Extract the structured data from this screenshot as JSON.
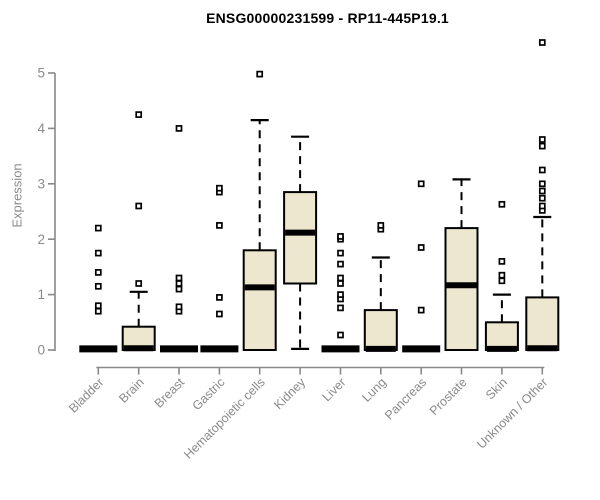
{
  "chart_data": {
    "type": "boxplot",
    "title": "ENSG00000231599 - RP11-445P19.1",
    "ylabel": "Expression",
    "xlabel": "",
    "ylim": [
      0,
      5
    ],
    "yticks": [
      0,
      1,
      2,
      3,
      4,
      5
    ],
    "grid": "off",
    "legend": "none",
    "categories": [
      "Bladder",
      "Brain",
      "Breast",
      "Gastric",
      "Hematopoietic cells",
      "Kidney",
      "Liver",
      "Lung",
      "Pancreas",
      "Prostate",
      "Skin",
      "Unknown / Other"
    ],
    "series": [
      {
        "name": "Bladder",
        "q1": 0,
        "median": 0.02,
        "q3": 0.02,
        "whisker_low": 0,
        "whisker_high": 0.02,
        "outliers": [
          0.7,
          0.8,
          1.15,
          1.4,
          1.75,
          2.2
        ]
      },
      {
        "name": "Brain",
        "q1": 0,
        "median": 0.03,
        "q3": 0.42,
        "whisker_low": 0,
        "whisker_high": 1.05,
        "outliers": [
          1.2,
          2.6,
          4.25
        ]
      },
      {
        "name": "Breast",
        "q1": 0,
        "median": 0.02,
        "q3": 0.02,
        "whisker_low": 0,
        "whisker_high": 0.02,
        "outliers": [
          0.7,
          0.78,
          1.1,
          1.2,
          1.3,
          4.0
        ]
      },
      {
        "name": "Gastric",
        "q1": 0,
        "median": 0.02,
        "q3": 0.02,
        "whisker_low": 0,
        "whisker_high": 0.02,
        "outliers": [
          0.65,
          0.95,
          2.25,
          2.85,
          2.92
        ]
      },
      {
        "name": "Hematopoietic cells",
        "q1": 0,
        "median": 1.13,
        "q3": 1.8,
        "whisker_low": 0,
        "whisker_high": 4.15,
        "outliers": [
          4.98
        ]
      },
      {
        "name": "Kidney",
        "q1": 1.2,
        "median": 2.12,
        "q3": 2.85,
        "whisker_low": 0.02,
        "whisker_high": 3.85,
        "outliers": []
      },
      {
        "name": "Liver",
        "q1": 0,
        "median": 0.02,
        "q3": 0.02,
        "whisker_low": 0,
        "whisker_high": 0.02,
        "outliers": [
          0.27,
          0.76,
          0.92,
          1.0,
          1.2,
          1.3,
          1.55,
          1.75,
          2.0,
          2.05
        ]
      },
      {
        "name": "Lung",
        "q1": 0,
        "median": 0.02,
        "q3": 0.72,
        "whisker_low": 0,
        "whisker_high": 1.67,
        "outliers": [
          2.18,
          2.25
        ]
      },
      {
        "name": "Pancreas",
        "q1": 0,
        "median": 0.02,
        "q3": 0.02,
        "whisker_low": 0,
        "whisker_high": 0.02,
        "outliers": [
          0.72,
          1.85,
          3.0
        ]
      },
      {
        "name": "Prostate",
        "q1": 0,
        "median": 1.17,
        "q3": 2.2,
        "whisker_low": 0,
        "whisker_high": 3.08,
        "outliers": []
      },
      {
        "name": "Skin",
        "q1": 0,
        "median": 0.02,
        "q3": 0.5,
        "whisker_low": 0,
        "whisker_high": 1.0,
        "outliers": [
          1.25,
          1.35,
          1.6,
          2.63
        ]
      },
      {
        "name": "Unknown / Other",
        "q1": 0,
        "median": 0.03,
        "q3": 0.95,
        "whisker_low": 0,
        "whisker_high": 2.4,
        "outliers": [
          2.52,
          2.6,
          2.74,
          2.87,
          3.0,
          3.25,
          3.68,
          3.8,
          5.55
        ]
      }
    ],
    "colors": {
      "box_fill": "#EDE7D0",
      "box_stroke": "#000000",
      "median": "#000000",
      "whisker": "#000000",
      "outlier_stroke": "#000000",
      "outlier_fill": "#ffffff",
      "axis": "#898989",
      "tick_label": "#8a8a8a",
      "title": "#000000"
    }
  }
}
